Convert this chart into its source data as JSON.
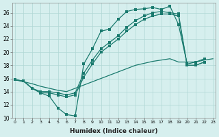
{
  "xlabel": "Humidex (Indice chaleur)",
  "bg_color": "#d6efee",
  "line_color": "#1a7a6e",
  "grid_color": "#b0d8d5",
  "xlim": [
    -0.3,
    23.3
  ],
  "ylim": [
    10,
    27.5
  ],
  "xticks": [
    0,
    1,
    2,
    3,
    4,
    5,
    6,
    7,
    8,
    9,
    10,
    11,
    12,
    13,
    14,
    15,
    16,
    17,
    18,
    19,
    20,
    21,
    22,
    23
  ],
  "yticks": [
    10,
    12,
    14,
    16,
    18,
    20,
    22,
    24,
    26
  ],
  "line_jagged_x": [
    0,
    1,
    2,
    3,
    4,
    5,
    6,
    7,
    8,
    9,
    10,
    11,
    12,
    13,
    14,
    15,
    16,
    17,
    18,
    19,
    20,
    21,
    22,
    23
  ],
  "line_jagged_y": [
    15.8,
    15.6,
    14.5,
    13.8,
    13.3,
    11.5,
    10.5,
    10.3,
    18.2,
    20.5,
    23.2,
    23.5,
    25.0,
    26.2,
    26.5,
    26.6,
    26.8,
    26.5,
    27.0,
    24.2,
    18.2,
    18.5,
    19.0,
    null
  ],
  "line_upper_x": [
    0,
    1,
    2,
    3,
    4,
    5,
    6,
    7,
    8,
    9,
    10,
    11,
    12,
    13,
    14,
    15,
    16,
    17,
    18,
    19,
    20,
    21,
    22,
    23
  ],
  "line_upper_y": [
    15.8,
    15.6,
    14.5,
    14.0,
    14.0,
    13.8,
    13.5,
    13.8,
    16.8,
    18.8,
    20.5,
    21.5,
    22.5,
    23.8,
    24.8,
    25.5,
    26.0,
    26.2,
    26.0,
    25.8,
    18.0,
    18.0,
    18.5,
    null
  ],
  "line_lower_x": [
    0,
    1,
    2,
    3,
    4,
    5,
    6,
    7,
    8,
    9,
    10,
    11,
    12,
    13,
    14,
    15,
    16,
    17,
    18,
    19,
    20,
    21,
    22,
    23
  ],
  "line_lower_y": [
    15.8,
    15.6,
    14.5,
    13.8,
    13.8,
    13.5,
    13.2,
    13.5,
    16.2,
    18.2,
    20.0,
    21.0,
    22.0,
    23.2,
    24.2,
    25.0,
    25.5,
    25.8,
    25.8,
    25.5,
    18.0,
    18.0,
    18.5,
    null
  ],
  "line_diag_x": [
    0,
    1,
    2,
    3,
    4,
    5,
    6,
    7,
    8,
    9,
    10,
    11,
    12,
    13,
    14,
    15,
    16,
    17,
    18,
    19,
    20,
    21,
    22,
    23
  ],
  "line_diag_y": [
    15.8,
    15.5,
    15.2,
    14.8,
    14.5,
    14.2,
    14.0,
    14.5,
    15.0,
    15.5,
    16.0,
    16.5,
    17.0,
    17.5,
    18.0,
    18.3,
    18.6,
    18.8,
    19.0,
    18.5,
    18.5,
    18.5,
    18.8,
    19.0
  ]
}
